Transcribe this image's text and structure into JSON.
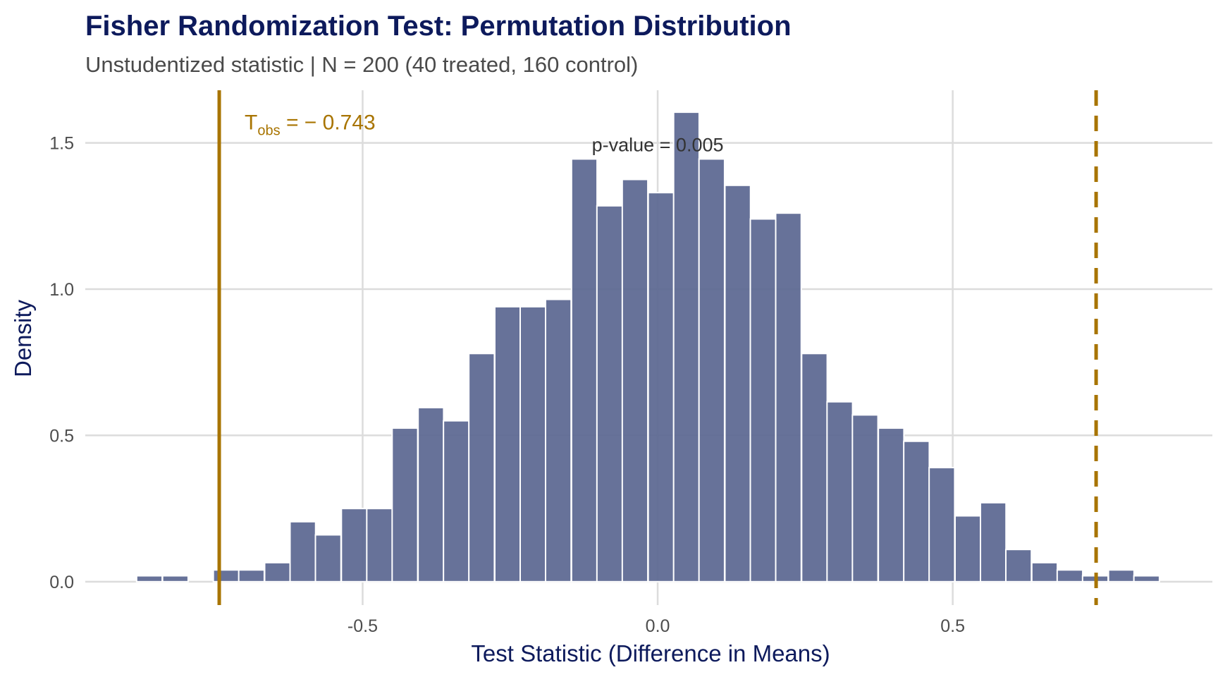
{
  "chart_data": {
    "type": "bar",
    "title": "Fisher Randomization Test: Permutation Distribution",
    "subtitle": "Unstudentized statistic | N = 200 (40 treated, 160 control)",
    "xlabel": "Test Statistic (Difference in Means)",
    "ylabel": "Density",
    "xlim": [
      -0.97,
      0.94
    ],
    "ylim": [
      -0.08,
      1.68
    ],
    "x_ticks": [
      {
        "value": -0.5,
        "label": "-0.5"
      },
      {
        "value": 0.0,
        "label": "0.0"
      },
      {
        "value": 0.5,
        "label": "0.5"
      }
    ],
    "y_ticks": [
      {
        "value": 0.0,
        "label": "0.0"
      },
      {
        "value": 0.5,
        "label": "0.5"
      },
      {
        "value": 1.0,
        "label": "1.0"
      },
      {
        "value": 1.5,
        "label": "1.5"
      }
    ],
    "grid": true,
    "bin_width": 0.0433,
    "bins": [
      {
        "x0": -0.883,
        "density": 0.02
      },
      {
        "x0": -0.839,
        "density": 0.02
      },
      {
        "x0": -0.753,
        "density": 0.04
      },
      {
        "x0": -0.71,
        "density": 0.04
      },
      {
        "x0": -0.666,
        "density": 0.065
      },
      {
        "x0": -0.623,
        "density": 0.205
      },
      {
        "x0": -0.58,
        "density": 0.16
      },
      {
        "x0": -0.536,
        "density": 0.25
      },
      {
        "x0": -0.493,
        "density": 0.25
      },
      {
        "x0": -0.45,
        "density": 0.525
      },
      {
        "x0": -0.406,
        "density": 0.595
      },
      {
        "x0": -0.363,
        "density": 0.55
      },
      {
        "x0": -0.32,
        "density": 0.78
      },
      {
        "x0": -0.276,
        "density": 0.94
      },
      {
        "x0": -0.233,
        "density": 0.94
      },
      {
        "x0": -0.19,
        "density": 0.965
      },
      {
        "x0": -0.146,
        "density": 1.445
      },
      {
        "x0": -0.103,
        "density": 1.285
      },
      {
        "x0": -0.06,
        "density": 1.375
      },
      {
        "x0": -0.016,
        "density": 1.33
      },
      {
        "x0": 0.027,
        "density": 1.605
      },
      {
        "x0": 0.07,
        "density": 1.445
      },
      {
        "x0": 0.114,
        "density": 1.355
      },
      {
        "x0": 0.157,
        "density": 1.24
      },
      {
        "x0": 0.2,
        "density": 1.26
      },
      {
        "x0": 0.244,
        "density": 0.78
      },
      {
        "x0": 0.287,
        "density": 0.615
      },
      {
        "x0": 0.33,
        "density": 0.57
      },
      {
        "x0": 0.374,
        "density": 0.525
      },
      {
        "x0": 0.417,
        "density": 0.48
      },
      {
        "x0": 0.46,
        "density": 0.39
      },
      {
        "x0": 0.504,
        "density": 0.225
      },
      {
        "x0": 0.547,
        "density": 0.27
      },
      {
        "x0": 0.59,
        "density": 0.11
      },
      {
        "x0": 0.634,
        "density": 0.065
      },
      {
        "x0": 0.677,
        "density": 0.04
      },
      {
        "x0": 0.72,
        "density": 0.02
      },
      {
        "x0": 0.764,
        "density": 0.04
      },
      {
        "x0": 0.807,
        "density": 0.02
      }
    ],
    "reference_lines": [
      {
        "name": "observed",
        "x": -0.743,
        "style": "solid"
      },
      {
        "name": "mirror",
        "x": 0.743,
        "style": "dashed"
      }
    ],
    "tobs_annotation": {
      "x": -0.7,
      "y": 1.57,
      "main": "T",
      "subscript": "obs",
      "rest": " = − 0.743"
    },
    "pvalue_annotation": {
      "x": 0.0,
      "y": 1.495,
      "text": "p-value = 0.005"
    },
    "colors": {
      "bar_fill": "#5a6690",
      "bar_stroke": "#ffffff",
      "line": "#a87400",
      "title": "#0d1a5c",
      "subtitle": "#4a4a4a",
      "axis_title": "#0d1a5c",
      "tick_label": "#4d4d4d",
      "grid": "#dcdcdc",
      "annotation": "#333333"
    }
  }
}
